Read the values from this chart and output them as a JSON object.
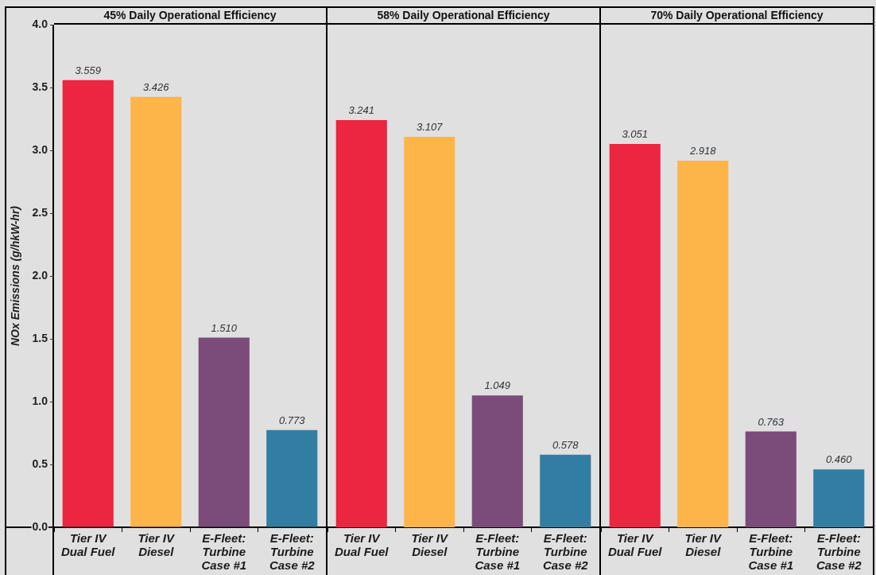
{
  "chart_data": [
    {
      "type": "bar",
      "title": "45% Daily Operational Efficiency",
      "ylabel": "NOx Emissions (g/hkW-hr)",
      "categories": [
        "Tier IV Dual Fuel",
        "Tier IV Diesel",
        "E-Fleet: Turbine Case #1",
        "E-Fleet: Turbine Case #2"
      ],
      "values": [
        3.559,
        3.426,
        1.51,
        0.773
      ],
      "value_labels": [
        "3.559",
        "3.426",
        "1.510",
        "0.773"
      ],
      "colors": [
        "#ec2540",
        "#fdb54a",
        "#7b4b79",
        "#327ea3"
      ],
      "ylim": [
        0,
        4
      ],
      "yticks": [
        {
          "value": 0,
          "label": "0.0"
        },
        0.5,
        {
          "value": 1,
          "label": "1.0"
        },
        1.5,
        {
          "value": 2,
          "label": "2.0"
        },
        2.5,
        {
          "value": 3,
          "label": "3.0"
        },
        3.5,
        {
          "value": 4,
          "label": "4.0"
        }
      ]
    },
    {
      "type": "bar",
      "title": "58% Daily Operational Efficiency",
      "categories": [
        "Tier IV Dual Fuel",
        "Tier IV Diesel",
        "E-Fleet: Turbine Case #1",
        "E-Fleet: Turbine Case #2"
      ],
      "values": [
        3.241,
        3.107,
        1.049,
        0.578
      ],
      "value_labels": [
        "3.241",
        "3.107",
        "1.049",
        "0.578"
      ],
      "colors": [
        "#ec2540",
        "#fdb54a",
        "#7b4b79",
        "#327ea3"
      ],
      "ylim": [
        0,
        4
      ],
      "tick_labels": "x"
    },
    {
      "type": "bar",
      "title": "70% Daily Operational Efficiency",
      "categories": [
        "Tier IV Dual Fuel",
        "Tier IV Diesel",
        "E-Fleet: Turbine Case #1",
        "E-Fleet: Turbine Case #2"
      ],
      "values": [
        3.051,
        2.918,
        0.763,
        0.46
      ],
      "value_labels": [
        "3.051",
        "2.918",
        "0.763",
        "0.460"
      ],
      "colors": [
        "#ec2540",
        "#fdb54a",
        "#7b4b79",
        "#327ea3"
      ],
      "ylim": [
        0,
        4
      ],
      "tick_labels": "x"
    }
  ]
}
